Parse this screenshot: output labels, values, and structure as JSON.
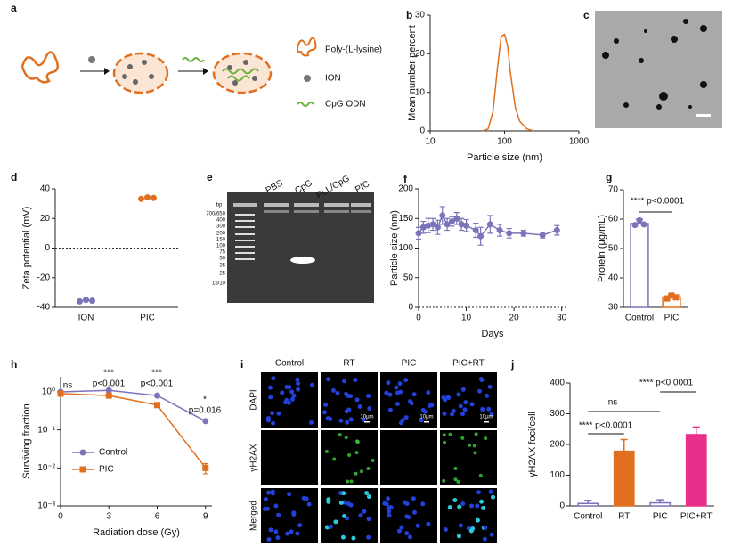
{
  "figure_a": {
    "label": "a",
    "legend": [
      "Poly-(L-lysine)",
      "ION",
      "CpG ODN"
    ]
  },
  "figure_c": {
    "label": "c"
  },
  "figure_e": {
    "label": "e",
    "lanes": [
      "PBS",
      "CpG",
      "PLL/CpG",
      "PIC"
    ],
    "unit": "bp",
    "markers": [
      "700/650",
      "400",
      "300",
      "200",
      "150",
      "100",
      "75",
      "50",
      "35",
      "25",
      "15/10"
    ]
  },
  "figure_i": {
    "label": "i",
    "columns": [
      "Control",
      "RT",
      "PIC",
      "PIC+RT"
    ],
    "rows": [
      "DAPI",
      "γH2AX",
      "Merged"
    ],
    "scale_label": "10μm"
  },
  "chart_data": [
    {
      "type": "line",
      "label": "b",
      "xlabel": "Particle size (nm)",
      "ylabel": "Mean number percent",
      "xlog": true,
      "xlim": [
        10,
        1000
      ],
      "xticks": [
        10,
        100,
        1000
      ],
      "ylim": [
        0,
        30
      ],
      "yticks": [
        0,
        10,
        20,
        30
      ],
      "x": [
        50,
        60,
        70,
        80,
        90,
        100,
        110,
        120,
        140,
        160,
        200,
        250
      ],
      "series": [
        {
          "color": "#e07020",
          "values": [
            0,
            0.5,
            5,
            16,
            24.5,
            25,
            22,
            15,
            6,
            2.5,
            0.5,
            0
          ]
        }
      ]
    },
    {
      "type": "strip",
      "label": "d",
      "ylabel": "Zeta potential (mV)",
      "categories": [
        "ION",
        "PIC"
      ],
      "points": [
        [
          -36,
          -35,
          -35.6
        ],
        [
          33.2,
          34.2,
          33.8
        ]
      ],
      "colors": [
        "#7b74bb",
        "#e07020"
      ],
      "ylim": [
        -40,
        40
      ],
      "yticks": [
        -40,
        -20,
        0,
        20,
        40
      ],
      "hline": 0
    },
    {
      "type": "line",
      "label": "f",
      "xlabel": "Days",
      "ylabel": "Particle size (nm)",
      "xlim": [
        0,
        31
      ],
      "xticks": [
        0,
        10,
        20,
        30
      ],
      "ylim": [
        0,
        200
      ],
      "yticks": [
        0,
        50,
        100,
        150,
        200
      ],
      "hline": 0,
      "x": [
        0,
        1,
        2,
        3,
        4,
        5,
        6,
        7,
        8,
        9,
        10,
        12,
        13,
        15,
        17,
        19,
        22,
        26,
        29
      ],
      "series": [
        {
          "color": "#7b74bb",
          "marker": "circle",
          "values": [
            125,
            135,
            138,
            140,
            135,
            155,
            140,
            145,
            150,
            140,
            138,
            130,
            120,
            140,
            130,
            125,
            125,
            122,
            130
          ],
          "errors": [
            10,
            10,
            12,
            10,
            12,
            15,
            10,
            8,
            10,
            10,
            10,
            12,
            15,
            15,
            10,
            8,
            5,
            5,
            8
          ]
        }
      ]
    },
    {
      "type": "bar",
      "label": "g",
      "ylabel": "Protein (μg/mL)",
      "categories": [
        "Control",
        "PIC"
      ],
      "values": [
        58.5,
        33.5
      ],
      "errors": [
        1.5,
        0.8
      ],
      "points": [
        [
          58,
          59.6,
          58.2
        ],
        [
          33,
          34,
          33.4
        ]
      ],
      "colors": [
        "#7b74bb",
        "#e07020"
      ],
      "filled": [
        false,
        false
      ],
      "ylim": [
        30,
        70
      ],
      "yticks": [
        30,
        40,
        50,
        60,
        70
      ],
      "annotations": [
        "**** p<0.0001"
      ]
    },
    {
      "type": "line",
      "label": "h",
      "xlabel": "Radiation dose (Gy)",
      "ylabel": "Surviving fraction",
      "ylog": true,
      "xlim": [
        0,
        9.4
      ],
      "xticks": [
        0,
        3,
        6,
        9
      ],
      "ylim": [
        0.001,
        2.5
      ],
      "yticks": [
        {
          "value": 1,
          "label": "10⁰"
        },
        {
          "value": 0.1,
          "label": "10⁻¹"
        },
        {
          "value": 0.01,
          "label": "10⁻²"
        },
        {
          "value": 0.001,
          "label": "10⁻³"
        }
      ],
      "x": [
        0,
        3,
        6,
        9
      ],
      "legend": "left",
      "series": [
        {
          "name": "Control",
          "color": "#7b74bb",
          "marker": "circle",
          "values": [
            1,
            1.1,
            0.8,
            0.17
          ]
        },
        {
          "name": "PIC",
          "color": "#e07020",
          "marker": "square",
          "values": [
            0.9,
            0.8,
            0.45,
            0.01
          ],
          "errors": [
            null,
            null,
            null,
            0.003
          ]
        }
      ],
      "annotations": [
        "ns",
        "***",
        "p<0.001",
        "***",
        "p<0.001",
        "*",
        "p=0.016"
      ]
    },
    {
      "type": "bar",
      "label": "j",
      "ylabel": "γH2AX foci/cell",
      "categories": [
        "Control",
        "RT",
        "PIC",
        "PIC+RT"
      ],
      "values": [
        8,
        178,
        10,
        232
      ],
      "errors": [
        10,
        38,
        10,
        25
      ],
      "colors": [
        "#7b74bb",
        "#e07020",
        "#7b74bb",
        "#e8308a"
      ],
      "filled": [
        false,
        true,
        false,
        true
      ],
      "ylim": [
        0,
        400
      ],
      "yticks": [
        0,
        100,
        200,
        300,
        400
      ],
      "annotations": [
        "**** p<0.0001",
        "ns",
        "**** p<0.0001"
      ]
    }
  ]
}
